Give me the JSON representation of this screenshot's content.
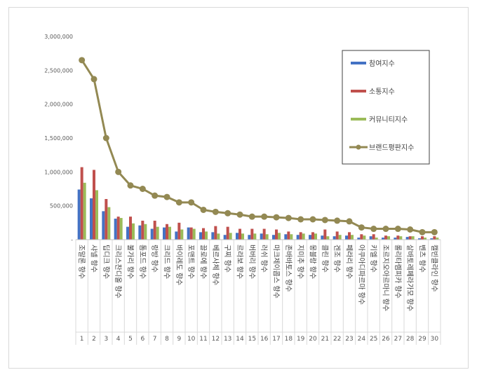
{
  "chart_data": {
    "type": "bar",
    "ylim": [
      0,
      3000000
    ],
    "yticks": [
      "-",
      "500,000",
      "1,000,000",
      "1,500,000",
      "2,000,000",
      "2,500,000",
      "3,000,000"
    ],
    "indices": [
      "1",
      "2",
      "3",
      "4",
      "5",
      "6",
      "7",
      "8",
      "9",
      "10",
      "11",
      "12",
      "13",
      "14",
      "15",
      "16",
      "17",
      "18",
      "19",
      "20",
      "21",
      "22",
      "23",
      "24",
      "25",
      "26",
      "27",
      "28",
      "29",
      "30"
    ],
    "categories": [
      "조말론 향수",
      "샤넬 향수",
      "딥디크 향수",
      "크리스찬디올 향수",
      "불가리 향수",
      "톰포드 향수",
      "랑방 향수",
      "크리드 향수",
      "바이레도 향수",
      "포맨트 향수",
      "끌로에 향수",
      "베르사체 향수",
      "구찌 향수",
      "르라보 향수",
      "버버리 향수",
      "러쉬 향수",
      "마크제이콥스 향수",
      "존바바토스 향수",
      "지미추 향수",
      "몽블랑 향수",
      "클린 향수",
      "겐조 향수",
      "페라리 향수",
      "아쿠아디파르마 향수",
      "키엘 향수",
      "조르지오아르마니 향수",
      "롤리타렘피카 향수",
      "살바토레페라가모 향수",
      "벤츠 향수",
      "캘빈클라인 향수"
    ],
    "series": [
      {
        "name": "참여지수",
        "color": "#4472c4",
        "values": [
          740000,
          610000,
          420000,
          310000,
          190000,
          210000,
          160000,
          180000,
          120000,
          180000,
          110000,
          110000,
          70000,
          100000,
          70000,
          90000,
          70000,
          80000,
          70000,
          70000,
          60000,
          50000,
          60000,
          30000,
          50000,
          30000,
          30000,
          40000,
          20000,
          20000
        ]
      },
      {
        "name": "소통지수",
        "color": "#c0504d",
        "values": [
          1070000,
          1030000,
          600000,
          340000,
          340000,
          280000,
          280000,
          230000,
          250000,
          180000,
          170000,
          200000,
          190000,
          160000,
          160000,
          160000,
          150000,
          120000,
          110000,
          110000,
          150000,
          120000,
          110000,
          80000,
          80000,
          60000,
          60000,
          50000,
          50000,
          50000
        ]
      },
      {
        "name": "커뮤니티지수",
        "color": "#9bbb59",
        "values": [
          840000,
          730000,
          480000,
          320000,
          240000,
          230000,
          190000,
          190000,
          150000,
          160000,
          120000,
          90000,
          100000,
          90000,
          90000,
          80000,
          100000,
          80000,
          90000,
          90000,
          50000,
          70000,
          70000,
          60000,
          30000,
          50000,
          50000,
          50000,
          30000,
          30000
        ]
      },
      {
        "name": "브랜드평판지수",
        "color": "#938953",
        "values": [
          2650000,
          2370000,
          1500000,
          1000000,
          800000,
          750000,
          650000,
          630000,
          550000,
          550000,
          440000,
          410000,
          390000,
          370000,
          340000,
          340000,
          330000,
          320000,
          300000,
          300000,
          290000,
          280000,
          270000,
          180000,
          160000,
          160000,
          160000,
          150000,
          110000,
          110000
        ]
      }
    ],
    "legend": "top-right",
    "grid": false
  }
}
